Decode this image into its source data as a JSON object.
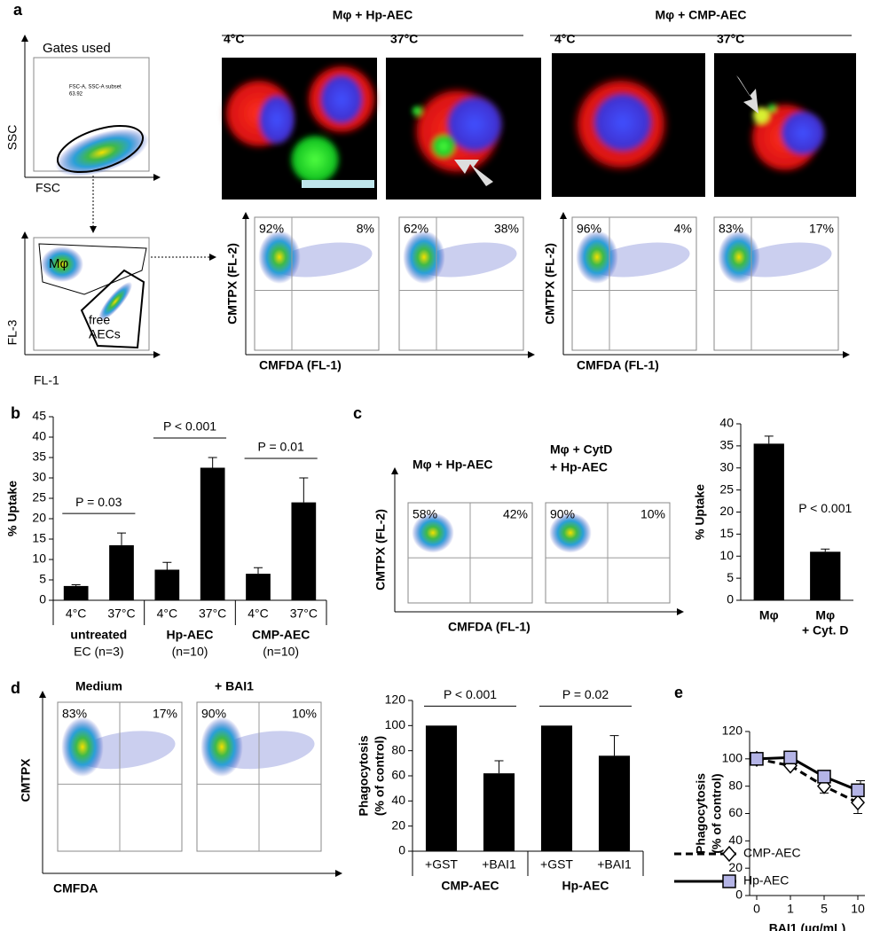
{
  "panel_labels": [
    "a",
    "b",
    "c",
    "d",
    "e"
  ],
  "panel_a": {
    "gating": {
      "title": "Gates used",
      "inset": [
        "FSC-A, SSC-A subset",
        "63.92"
      ],
      "x_label": "FSC",
      "y_label": "SSC",
      "x_label_2": "FL-1",
      "y_label_2": "FL-3",
      "gate_macrophage": "Mφ",
      "gate_free": [
        "free",
        "AECs"
      ]
    },
    "conditions": [
      {
        "title": "Mφ + Hp-AEC",
        "temperatures": [
          "4°C",
          "37°C"
        ],
        "quadrants": [
          [
            "92%",
            "8%"
          ],
          [
            "62%",
            "38%"
          ]
        ]
      },
      {
        "title": "Mφ + CMP-AEC",
        "temperatures": [
          "4°C",
          "37°C"
        ],
        "quadrants": [
          [
            "96%",
            "4%"
          ],
          [
            "83%",
            "17%"
          ]
        ]
      }
    ],
    "flow_y_label": "CMTPX (FL-2)",
    "flow_x_label": "CMFDA (FL-1)"
  },
  "panel_c": {
    "plots": [
      {
        "title": [
          "Mφ + Hp-AEC"
        ],
        "quadrants": [
          "58%",
          "42%"
        ]
      },
      {
        "title": [
          "Mφ + CytD",
          "+ Hp-AEC"
        ],
        "quadrants": [
          "90%",
          "10%"
        ]
      }
    ],
    "y_label": "CMTPX (FL-2)",
    "x_label": "CMFDA (FL-1)"
  },
  "panel_d": {
    "plots": [
      {
        "title": [
          "Medium"
        ],
        "quadrants": [
          "83%",
          "17%"
        ]
      },
      {
        "title": [
          "+ BAI1"
        ],
        "quadrants": [
          "90%",
          "10%"
        ]
      }
    ],
    "y_label": "CMTPX",
    "x_label": "CMFDA"
  },
  "chart_data": [
    {
      "type": "bar",
      "y_label": [
        "% Uptake"
      ],
      "categories": [
        "4°C",
        "37°C",
        "4°C",
        "37°C",
        "4°C",
        "37°C"
      ],
      "groups": [
        [
          "untreated",
          "EC (n=3)"
        ],
        [
          "Hp-AEC",
          "(n=10)"
        ],
        [
          "CMP-AEC",
          "(n=10)"
        ]
      ],
      "values": [
        3.5,
        13.5,
        7.5,
        32.5,
        6.5,
        24
      ],
      "errors": [
        0.3,
        3,
        1.8,
        2.5,
        1.5,
        6
      ],
      "color": "#000000",
      "ylim": [
        0,
        45
      ],
      "yticks": [
        0,
        5,
        10,
        15,
        20,
        25,
        30,
        35,
        40,
        45
      ],
      "annotations": [
        "P = 0.03",
        "P < 0.001",
        "P = 0.01"
      ]
    },
    {
      "type": "bar",
      "y_label": [
        "% Uptake"
      ],
      "categories": [
        [
          "Mφ"
        ],
        [
          "Mφ",
          "+ Cyt. D"
        ]
      ],
      "values": [
        35.5,
        11
      ],
      "errors": [
        1.7,
        0.6
      ],
      "color": "#000000",
      "ylim": [
        0,
        40
      ],
      "yticks": [
        0,
        5,
        10,
        15,
        20,
        25,
        30,
        35,
        40
      ],
      "annotations": [
        "P < 0.001"
      ]
    },
    {
      "type": "bar",
      "y_label": [
        "Phagocytosis",
        "(% of control)"
      ],
      "categories": [
        "+GST",
        "+BAI1",
        "+GST",
        "+BAI1"
      ],
      "groups": [
        [
          "CMP-AEC"
        ],
        [
          "Hp-AEC"
        ]
      ],
      "values": [
        100,
        62,
        100,
        76
      ],
      "errors": [
        null,
        10,
        null,
        16
      ],
      "color": "#000000",
      "ylim": [
        0,
        120
      ],
      "yticks": [
        0,
        20,
        40,
        60,
        80,
        100,
        120
      ],
      "annotations": [
        "P < 0.001",
        "P = 0.02"
      ]
    },
    {
      "type": "line",
      "y_label": [
        "Phagocytosis",
        "(% of control)"
      ],
      "x_label": "BAI1 (µg/mL)",
      "categories": [
        "0",
        "1",
        "5",
        "10"
      ],
      "series": [
        {
          "name": "CMP-AEC",
          "color": "#000000",
          "dashed": true,
          "marker": "diamond",
          "marker_fill": "#ffffff",
          "values": [
            100,
            95,
            80,
            68
          ],
          "errors": [
            null,
            null,
            5,
            8
          ]
        },
        {
          "name": "Hp-AEC",
          "color": "#000000",
          "dashed": false,
          "marker": "square",
          "marker_fill": "#b4b4e6",
          "values": [
            100,
            101,
            87,
            77
          ],
          "errors": [
            null,
            null,
            null,
            7
          ]
        }
      ],
      "ylim": [
        0,
        120
      ],
      "yticks": [
        0,
        20,
        40,
        60,
        80,
        100,
        120
      ],
      "legend": "lower left"
    }
  ]
}
